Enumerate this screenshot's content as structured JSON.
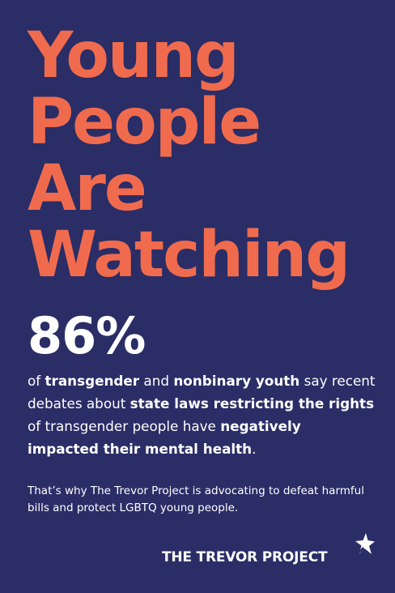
{
  "headline": {
    "lines": [
      "Young",
      "People",
      "Are",
      "Watching"
    ],
    "color": "#f06b4e"
  },
  "stat": {
    "value": "86%",
    "t1": "of ",
    "b1": "transgender",
    "t2": " and ",
    "b2": "nonbinary youth",
    "t3": " say recent debates about ",
    "b3": "state laws restricting the rights",
    "t4": " of transgender people have ",
    "b4": "negatively impacted their mental health",
    "t5": "."
  },
  "note": {
    "text": "That’s why The Trevor Project is advocating to defeat harmful bills and protect LGBTQ young people."
  },
  "logo": {
    "text": "THE TREVOR PROJECT",
    "icon": "star-logo-icon"
  },
  "colors": {
    "background": "#2a2d66",
    "accent": "#f06b4e",
    "text": "#ffffff"
  }
}
